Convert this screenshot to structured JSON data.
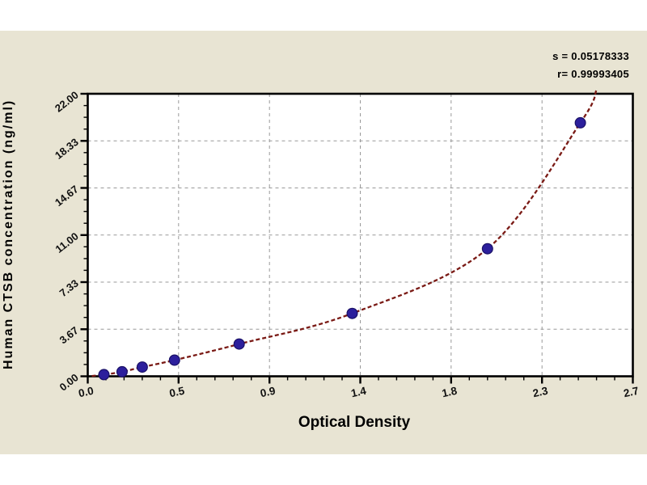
{
  "figure": {
    "panel_color": "#e8e4d3",
    "outer_background": "#ffffff",
    "annotation": {
      "line1": "s = 0.05178333",
      "line2": "r= 0.99993405"
    }
  },
  "chart_data": {
    "type": "scatter",
    "title": "",
    "xlabel": "Optical Density",
    "ylabel": "Human CTSB concentration (ng/ml)",
    "xlim": [
      0,
      2.7
    ],
    "ylim": [
      0,
      22
    ],
    "x_tick_labels": [
      "0.0",
      "0.5",
      "0.9",
      "1.4",
      "1.8",
      "2.3",
      "2.7"
    ],
    "y_tick_labels": [
      "0.00",
      "3.67",
      "7.33",
      "11.00",
      "14.67",
      "18.33",
      "22.00"
    ],
    "x_major_divisions": 6,
    "y_major_divisions": 6,
    "x_minor_per_major": 4,
    "y_minor_per_major": 3,
    "grid": true,
    "legend": "none",
    "series": [
      {
        "name": "standard-points",
        "type": "scatter",
        "x": [
          0.08,
          0.17,
          0.27,
          0.43,
          0.75,
          1.31,
          1.98,
          2.44
        ],
        "y": [
          0.13,
          0.35,
          0.72,
          1.26,
          2.51,
          4.9,
          9.93,
          19.74
        ]
      },
      {
        "name": "fitted-curve",
        "type": "line",
        "x": [
          0.02,
          0.08,
          0.17,
          0.27,
          0.43,
          0.75,
          1.31,
          1.98,
          2.44,
          2.52
        ],
        "y": [
          0.02,
          0.13,
          0.35,
          0.72,
          1.26,
          2.51,
          4.9,
          9.93,
          19.74,
          22.3
        ]
      }
    ],
    "stats": {
      "s": "0.05178333",
      "r": "0.99993405"
    },
    "colors": {
      "curve": "#7a1a15",
      "marker": "#2c1f9c",
      "marker_edge": "#1a1166",
      "grid": "#999999",
      "frame": "#000000",
      "plot_bg": "#ffffff"
    }
  }
}
